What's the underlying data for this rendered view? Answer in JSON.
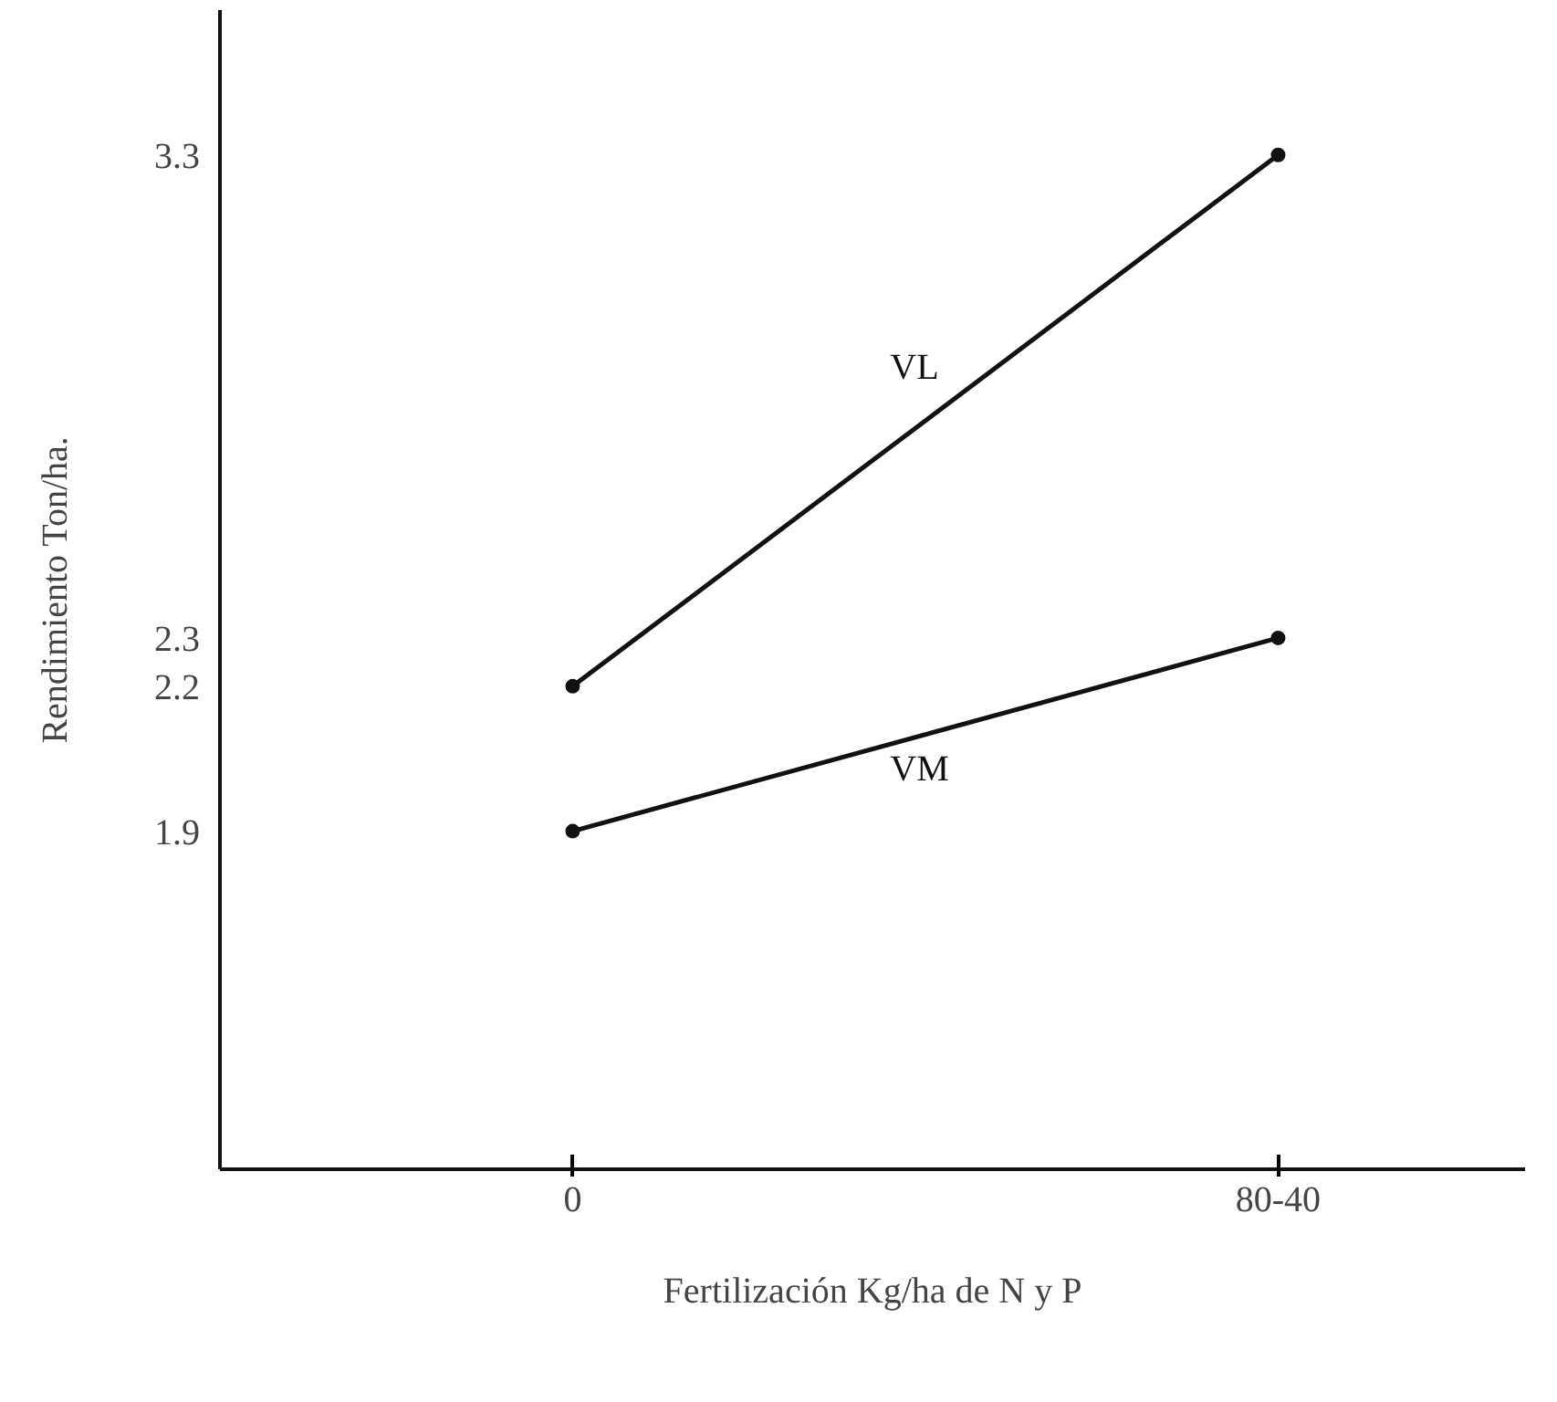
{
  "chart_data": {
    "type": "line",
    "xlabel": "Fertilización Kg/ha de N y P",
    "ylabel": "Rendimiento Ton/ha.",
    "categories": [
      "0",
      "80-40"
    ],
    "series": [
      {
        "name": "VL",
        "color": "#111111",
        "values": [
          2.2,
          3.3
        ]
      },
      {
        "name": "VM",
        "color": "#111111",
        "values": [
          1.9,
          2.3
        ]
      }
    ],
    "ylim": [
      1.2,
      3.6
    ],
    "yticks": [
      1.9,
      2.2,
      2.3,
      3.3
    ],
    "marker": "circle",
    "line_style": "solid",
    "grid": false
  }
}
